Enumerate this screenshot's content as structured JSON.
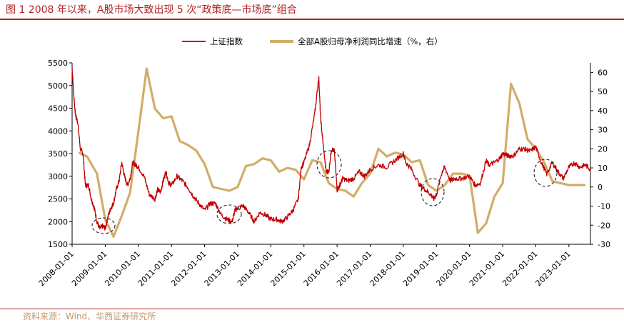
{
  "title": "图 1  2008 年以来，A股市场大致出现 5 次“政策底—市场底”组合",
  "source": "资料来源：Wind、华西证券研究所",
  "colors": {
    "index": "#c00000",
    "profit": "#d2ad6a",
    "accent": "#b22222",
    "source": "#c49a6c"
  },
  "chart_data": {
    "type": "line",
    "title": "",
    "legend_position": "top-center",
    "left_axis": {
      "ylim": [
        1500,
        5500
      ],
      "ticks": [
        1500,
        2000,
        2500,
        3000,
        3500,
        4000,
        4500,
        5000,
        5500
      ]
    },
    "right_axis": {
      "ylim": [
        -30,
        65
      ],
      "ticks": [
        -30,
        -20,
        -10,
        0,
        10,
        20,
        30,
        40,
        50,
        60
      ]
    },
    "x_ticks": [
      "2008-01-01",
      "2009-01-01",
      "2010-01-01",
      "2011-01-01",
      "2012-01-01",
      "2013-01-01",
      "2014-01-01",
      "2015-01-01",
      "2016-01-01",
      "2017-01-01",
      "2018-01-01",
      "2019-01-01",
      "2020-01-01",
      "2021-01-01",
      "2022-01-01",
      "2023-01-01"
    ],
    "x_range": [
      2008.0,
      2023.65
    ],
    "series": [
      {
        "name": "上证指数",
        "axis": "left",
        "x": [
          2008.0,
          2008.04,
          2008.08,
          2008.12,
          2008.17,
          2008.25,
          2008.33,
          2008.4,
          2008.5,
          2008.58,
          2008.67,
          2008.75,
          2008.83,
          2008.92,
          2009.0,
          2009.08,
          2009.17,
          2009.25,
          2009.33,
          2009.42,
          2009.5,
          2009.58,
          2009.67,
          2009.75,
          2009.83,
          2009.92,
          2010.0,
          2010.17,
          2010.33,
          2010.5,
          2010.58,
          2010.67,
          2010.75,
          2010.83,
          2010.92,
          2011.0,
          2011.17,
          2011.33,
          2011.5,
          2011.67,
          2011.83,
          2012.0,
          2012.17,
          2012.33,
          2012.5,
          2012.67,
          2012.83,
          2012.92,
          2013.0,
          2013.17,
          2013.33,
          2013.5,
          2013.67,
          2013.83,
          2014.0,
          2014.17,
          2014.33,
          2014.5,
          2014.67,
          2014.83,
          2014.92,
          2015.0,
          2015.17,
          2015.33,
          2015.42,
          2015.45,
          2015.5,
          2015.58,
          2015.67,
          2015.75,
          2015.83,
          2015.92,
          2016.0,
          2016.08,
          2016.17,
          2016.33,
          2016.5,
          2016.67,
          2016.83,
          2017.0,
          2017.25,
          2017.5,
          2017.75,
          2018.0,
          2018.08,
          2018.25,
          2018.5,
          2018.67,
          2018.83,
          2018.92,
          2019.0,
          2019.17,
          2019.25,
          2019.42,
          2019.58,
          2019.75,
          2020.0,
          2020.17,
          2020.33,
          2020.5,
          2020.58,
          2020.75,
          2020.92,
          2021.0,
          2021.17,
          2021.33,
          2021.5,
          2021.67,
          2021.83,
          2022.0,
          2022.17,
          2022.33,
          2022.5,
          2022.67,
          2022.83,
          2023.0,
          2023.17,
          2023.33,
          2023.5,
          2023.65
        ],
        "values": [
          5400,
          4900,
          4500,
          4300,
          4200,
          3600,
          3500,
          2800,
          2800,
          2500,
          2300,
          2000,
          1850,
          1900,
          1850,
          2100,
          2300,
          2400,
          2700,
          2900,
          3300,
          3000,
          2800,
          2950,
          3300,
          3250,
          3200,
          3000,
          2600,
          2500,
          2700,
          2650,
          2900,
          3100,
          2850,
          2800,
          3000,
          2900,
          2750,
          2550,
          2400,
          2250,
          2400,
          2400,
          2150,
          2050,
          2000,
          2250,
          2300,
          2350,
          2200,
          2000,
          2200,
          2150,
          2050,
          2050,
          2000,
          2100,
          2250,
          2500,
          3200,
          3300,
          3700,
          4400,
          5000,
          5150,
          4300,
          3700,
          3100,
          3100,
          3600,
          3550,
          2700,
          2800,
          2950,
          2900,
          2950,
          3100,
          3000,
          3150,
          3250,
          3200,
          3350,
          3500,
          3300,
          3150,
          2800,
          2700,
          2600,
          2500,
          2600,
          3100,
          3200,
          2900,
          2950,
          2950,
          3000,
          2800,
          2850,
          3350,
          3250,
          3300,
          3400,
          3500,
          3450,
          3450,
          3600,
          3600,
          3550,
          3650,
          3300,
          3050,
          3300,
          3100,
          2950,
          3200,
          3300,
          3200,
          3250,
          3150
        ]
      },
      {
        "name": "全部A股归母净利润同比增速（%，右）",
        "axis": "right",
        "x": [
          2008.2,
          2008.45,
          2008.75,
          2009.0,
          2009.25,
          2009.5,
          2009.75,
          2010.0,
          2010.25,
          2010.5,
          2010.75,
          2011.0,
          2011.25,
          2011.5,
          2011.75,
          2012.0,
          2012.25,
          2012.5,
          2012.75,
          2013.0,
          2013.25,
          2013.5,
          2013.75,
          2014.0,
          2014.25,
          2014.5,
          2014.75,
          2015.0,
          2015.25,
          2015.5,
          2015.75,
          2016.0,
          2016.25,
          2016.5,
          2016.75,
          2017.0,
          2017.25,
          2017.5,
          2017.75,
          2018.0,
          2018.25,
          2018.5,
          2018.75,
          2019.0,
          2019.25,
          2019.5,
          2019.75,
          2020.0,
          2020.25,
          2020.5,
          2020.75,
          2021.0,
          2021.25,
          2021.5,
          2021.75,
          2022.0,
          2022.25,
          2022.5,
          2022.75,
          2023.0,
          2023.25,
          2023.5
        ],
        "values": [
          18,
          16,
          7,
          -17,
          -26,
          -15,
          -3,
          29,
          62,
          41,
          36,
          37,
          24,
          22,
          19,
          12,
          0,
          -1,
          -2,
          0,
          11,
          12,
          15,
          14,
          8,
          10,
          9,
          4,
          14,
          13,
          2,
          -1,
          -2,
          -5,
          2,
          7,
          20,
          16,
          18,
          17,
          13,
          14,
          1,
          -2,
          1,
          7,
          7,
          6,
          -24,
          -19,
          -5,
          2,
          54,
          44,
          25,
          20,
          13,
          3,
          2,
          1,
          1,
          1
        ]
      }
    ]
  }
}
